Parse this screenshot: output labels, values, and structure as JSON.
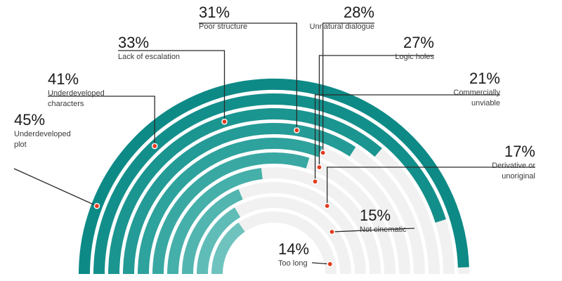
{
  "colors": {
    "track": "#f1f1f1",
    "leader": "#2a2a2a",
    "dot_fill": "#e23a1e",
    "dot_stroke": "#ffffff"
  },
  "chart_data": {
    "type": "radial-bar",
    "unit": "%",
    "max_value": 100,
    "title": "",
    "series": [
      {
        "label": "Underdeveloped plot",
        "value": 45,
        "color": "#0d8a86"
      },
      {
        "label": "Underdeveloped characters",
        "value": 41,
        "color": "#138f8b"
      },
      {
        "label": "Lack of escalation",
        "value": 33,
        "color": "#1b9590"
      },
      {
        "label": "Poor structure",
        "value": 31,
        "color": "#249b96"
      },
      {
        "label": "Unnatural dialogue",
        "value": 28,
        "color": "#2ea29c"
      },
      {
        "label": "Logic holes",
        "value": 27,
        "color": "#39a8a3"
      },
      {
        "label": "Commercially unviable",
        "value": 21,
        "color": "#45afa9"
      },
      {
        "label": "Derivative or unoriginal",
        "value": 17,
        "color": "#52b5b0"
      },
      {
        "label": "Not cinematic",
        "value": 15,
        "color": "#60bcb7"
      },
      {
        "label": "Too long",
        "value": 14,
        "color": "#6fc3be"
      }
    ]
  },
  "labels": [
    {
      "pct": "45%",
      "desc": "Underdeveloped\nplot"
    },
    {
      "pct": "41%",
      "desc": "Underdeveloped\ncharacters"
    },
    {
      "pct": "33%",
      "desc": "Lack of escalation"
    },
    {
      "pct": "31%",
      "desc": "Poor structure"
    },
    {
      "pct": "28%",
      "desc": "Unnatural dialogue"
    },
    {
      "pct": "27%",
      "desc": "Logic holes"
    },
    {
      "pct": "21%",
      "desc": "Commercially\nunviable"
    },
    {
      "pct": "17%",
      "desc": "Derivative or\nunoriginal"
    },
    {
      "pct": "15%",
      "desc": "Not cinematic"
    },
    {
      "pct": "14%",
      "desc": "Too long"
    }
  ]
}
